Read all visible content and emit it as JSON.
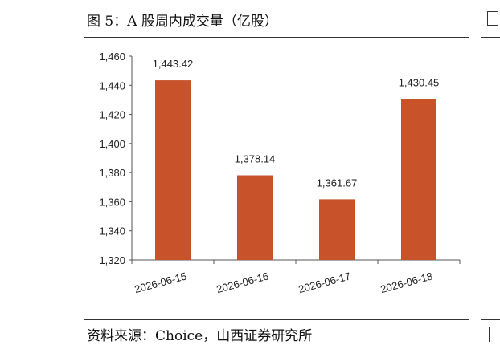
{
  "figure": {
    "title": "图 5：A 股周内成交量（亿股）",
    "source": "资料来源：Choice，山西证券研究所"
  },
  "chart_data": {
    "type": "bar",
    "categories": [
      "2026-06-15",
      "2026-06-16",
      "2026-06-17",
      "2026-06-18"
    ],
    "values": [
      1443.42,
      1378.14,
      1361.67,
      1430.45
    ],
    "data_labels": [
      "1,443.42",
      "1,378.14",
      "1,361.67",
      "1,430.45"
    ],
    "ylim": [
      1320,
      1460
    ],
    "yticks": [
      1320,
      1340,
      1360,
      1380,
      1400,
      1420,
      1440,
      1460
    ],
    "ytick_labels": [
      "1,320",
      "1,340",
      "1,360",
      "1,380",
      "1,400",
      "1,420",
      "1,440",
      "1,460"
    ],
    "bar_color": "#C8532A",
    "grid": false,
    "legend": "none"
  }
}
